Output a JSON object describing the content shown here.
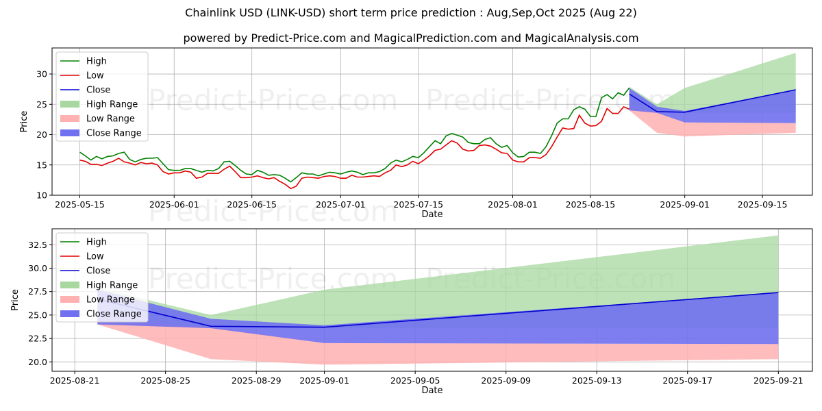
{
  "title": "Chainlink USD (LINK-USD) short term price prediction : Aug,Sep,Oct 2025 (Aug 22)",
  "subtitle": "powered by Predict-Price.com and MagicalPrediction.com and MagicalAnalysis.com",
  "watermark": "Predict-Price.com",
  "colors": {
    "high": "#008000",
    "low": "#e00000",
    "close": "#0000d0",
    "high_range": "#a8d8a0",
    "low_range": "#ffb0b0",
    "close_range": "#7070f0"
  },
  "chart_data": [
    {
      "type": "line",
      "xlabel": "Date",
      "ylabel": "Price",
      "xlim": [
        "2025-05-10",
        "2025-09-24"
      ],
      "ylim": [
        10,
        34.3
      ],
      "grid": true,
      "legend_placement": "top-left",
      "xticks": [
        "2025-05-15",
        "2025-06-01",
        "2025-06-15",
        "2025-07-01",
        "2025-07-15",
        "2025-08-01",
        "2025-08-15",
        "2025-09-01",
        "2025-09-15"
      ],
      "yticks": [
        10,
        15,
        20,
        25,
        30
      ],
      "legend": [
        "High",
        "Low",
        "Close",
        "High Range",
        "Low Range",
        "Close Range"
      ],
      "history": {
        "start_date": "2025-05-15",
        "high": [
          17.1,
          16.5,
          15.8,
          16.4,
          16.0,
          16.4,
          16.5,
          16.9,
          17.1,
          15.9,
          15.5,
          15.9,
          16.1,
          16.1,
          16.2,
          15.2,
          14.2,
          14.1,
          14.1,
          14.4,
          14.4,
          14.1,
          13.8,
          14.1,
          14.0,
          14.4,
          15.5,
          15.6,
          14.9,
          14.1,
          13.5,
          13.4,
          14.1,
          13.8,
          13.3,
          13.4,
          13.3,
          12.8,
          12.2,
          12.9,
          13.7,
          13.5,
          13.5,
          13.2,
          13.5,
          13.8,
          13.7,
          13.5,
          13.8,
          14.0,
          13.8,
          13.4,
          13.7,
          13.7,
          13.9,
          14.4,
          15.3,
          15.8,
          15.5,
          15.9,
          16.4,
          16.2,
          17.0,
          18.0,
          19.0,
          18.5,
          19.8,
          20.2,
          19.9,
          19.6,
          18.7,
          18.5,
          18.5,
          19.2,
          19.5,
          18.5,
          17.9,
          18.2,
          17.0,
          16.3,
          16.4,
          17.1,
          17.1,
          16.9,
          18.0,
          19.8,
          21.9,
          22.6,
          22.6,
          24.1,
          24.6,
          24.2,
          23.0,
          23.0,
          26.1,
          26.6,
          25.9,
          26.9,
          26.5,
          27.7
        ],
        "low": [
          15.8,
          15.6,
          15.1,
          15.1,
          14.9,
          15.3,
          15.6,
          16.1,
          15.5,
          15.3,
          15.0,
          15.4,
          15.2,
          15.3,
          15.0,
          13.9,
          13.5,
          13.7,
          13.7,
          14.0,
          13.8,
          12.8,
          13.0,
          13.6,
          13.6,
          13.6,
          14.3,
          14.8,
          13.9,
          12.9,
          12.9,
          13.0,
          13.2,
          12.9,
          12.7,
          12.9,
          12.3,
          11.8,
          11.1,
          11.5,
          12.8,
          13.0,
          12.9,
          12.8,
          13.1,
          13.2,
          13.1,
          12.8,
          12.8,
          13.3,
          13.0,
          13.0,
          13.1,
          13.2,
          13.1,
          13.7,
          14.1,
          15.0,
          14.7,
          15.0,
          15.6,
          15.2,
          15.8,
          16.5,
          17.4,
          17.6,
          18.3,
          19.0,
          18.6,
          17.6,
          17.3,
          17.4,
          18.2,
          18.3,
          18.1,
          17.6,
          17.0,
          16.9,
          15.8,
          15.5,
          15.5,
          16.2,
          16.2,
          16.1,
          16.7,
          18.0,
          19.6,
          21.1,
          20.9,
          21.0,
          23.2,
          21.9,
          21.4,
          21.5,
          22.2,
          24.3,
          23.5,
          23.5,
          24.6,
          24.2
        ]
      },
      "forecast": {
        "dates": [
          "2025-08-22",
          "2025-08-27",
          "2025-09-01",
          "2025-09-21"
        ],
        "close": [
          26.7,
          23.8,
          23.7,
          27.4
        ],
        "high_range": {
          "upper": [
            27.9,
            25.0,
            27.7,
            33.5
          ],
          "lower": [
            24.5,
            23.7,
            23.6,
            23.6
          ]
        },
        "low_range": {
          "upper": [
            24.5,
            23.7,
            22.0,
            21.9
          ],
          "lower": [
            24.0,
            20.3,
            19.7,
            20.3
          ]
        },
        "close_range": {
          "upper": [
            27.7,
            24.6,
            23.9,
            27.4
          ],
          "lower": [
            24.0,
            23.6,
            22.0,
            21.9
          ]
        }
      }
    },
    {
      "type": "line",
      "xlabel": "Date",
      "ylabel": "Price",
      "xlim": [
        "2025-08-20",
        "2025-09-22.5"
      ],
      "ylim": [
        19.0,
        34.2
      ],
      "grid": true,
      "legend_placement": "top-left",
      "xticks": [
        "2025-08-21",
        "2025-08-25",
        "2025-08-29",
        "2025-09-01",
        "2025-09-05",
        "2025-09-09",
        "2025-09-13",
        "2025-09-17",
        "2025-09-21"
      ],
      "yticks": [
        20.0,
        22.5,
        25.0,
        27.5,
        30.0,
        32.5
      ],
      "legend": [
        "High",
        "Low",
        "Close",
        "High Range",
        "Low Range",
        "Close Range"
      ],
      "forecast": {
        "dates": [
          "2025-08-22",
          "2025-08-27",
          "2025-09-01",
          "2025-09-21"
        ],
        "close": [
          26.7,
          23.8,
          23.7,
          27.4
        ],
        "high_range": {
          "upper": [
            27.9,
            25.0,
            27.7,
            33.5
          ],
          "lower": [
            24.5,
            23.7,
            23.6,
            23.6
          ]
        },
        "low_range": {
          "upper": [
            24.5,
            23.7,
            22.0,
            21.9
          ],
          "lower": [
            24.0,
            20.3,
            19.7,
            20.3
          ]
        },
        "close_range": {
          "upper": [
            27.7,
            24.6,
            23.9,
            27.4
          ],
          "lower": [
            24.0,
            23.6,
            22.0,
            21.9
          ]
        }
      }
    }
  ]
}
